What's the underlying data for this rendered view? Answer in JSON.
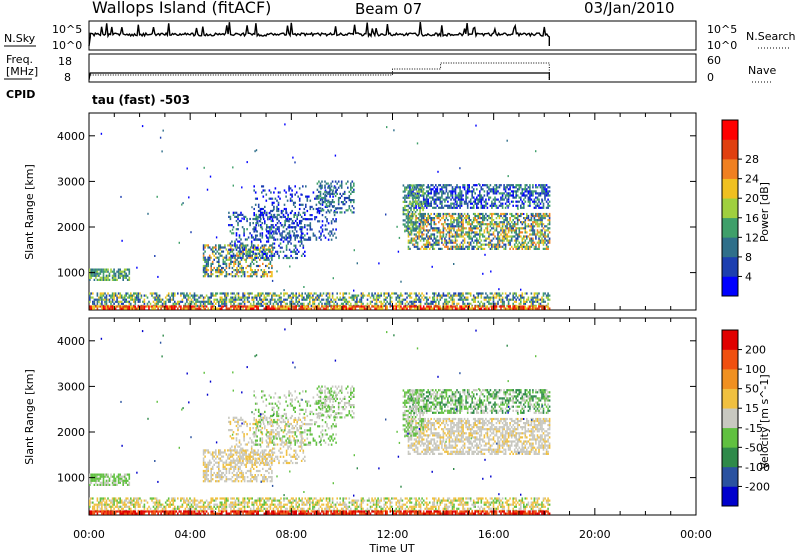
{
  "header": {
    "site": "Wallops Island (fitACF)",
    "beam": "Beam 07",
    "date": "03/Jan/2010"
  },
  "aux_panels": {
    "nsky_label": "N.Sky",
    "nsky_ticks": [
      "10^5",
      "10^0"
    ],
    "nsky_right_ticks": [
      "10^5",
      "10^0"
    ],
    "nsearch_label": "N.Search",
    "freq_label_line1": "Freq.",
    "freq_label_line2": "[MHz]",
    "freq_ticks": [
      "18",
      "8"
    ],
    "nave_ticks": [
      "60",
      "0"
    ],
    "nave_label": "Nave",
    "cpid_label": "CPID",
    "cpid_text": "tau (fast) -503"
  },
  "colors": {
    "power_scale": [
      "#0000ff",
      "#1c3fb0",
      "#2f6f8a",
      "#3f9f6a",
      "#9fcf3f",
      "#f0c020",
      "#f08020",
      "#e04010",
      "#ff0000"
    ],
    "velocity_scale": [
      "#0000cc",
      "#2a52a0",
      "#2f8a4a",
      "#60c040",
      "#c8c8c0",
      "#f0c040",
      "#f09020",
      "#f05010",
      "#e00000"
    ]
  },
  "chart_data": [
    {
      "type": "heatmap",
      "name_field": "Power",
      "ylabel": "Slant Range [km]",
      "ylim": [
        180,
        4500
      ],
      "yticks": [
        1000,
        2000,
        3000,
        4000
      ],
      "xlim_hours": [
        0,
        24
      ],
      "colorbar_label": "Power [dB]",
      "colorbar_ticks": [
        "4",
        "8",
        "12",
        "16",
        "20",
        "24",
        "28"
      ],
      "colorbar_range": [
        0,
        30
      ],
      "data_end_hour": 18.2
    },
    {
      "type": "heatmap",
      "name_field": "Velocity",
      "ylabel": "Slant Range [km]",
      "ylim": [
        180,
        4500
      ],
      "yticks": [
        1000,
        2000,
        3000,
        4000
      ],
      "xlim_hours": [
        0,
        24
      ],
      "colorbar_label": "Velocity [m s^-1]",
      "colorbar_ticks": [
        "200",
        "100",
        "50",
        "15",
        "-15",
        "-50",
        "-100",
        "-200"
      ],
      "data_end_hour": 18.2
    }
  ],
  "time_axis": {
    "ticks": [
      "00:00",
      "04:00",
      "08:00",
      "12:00",
      "16:00",
      "20:00",
      "00:00"
    ],
    "label": "Time UT"
  }
}
